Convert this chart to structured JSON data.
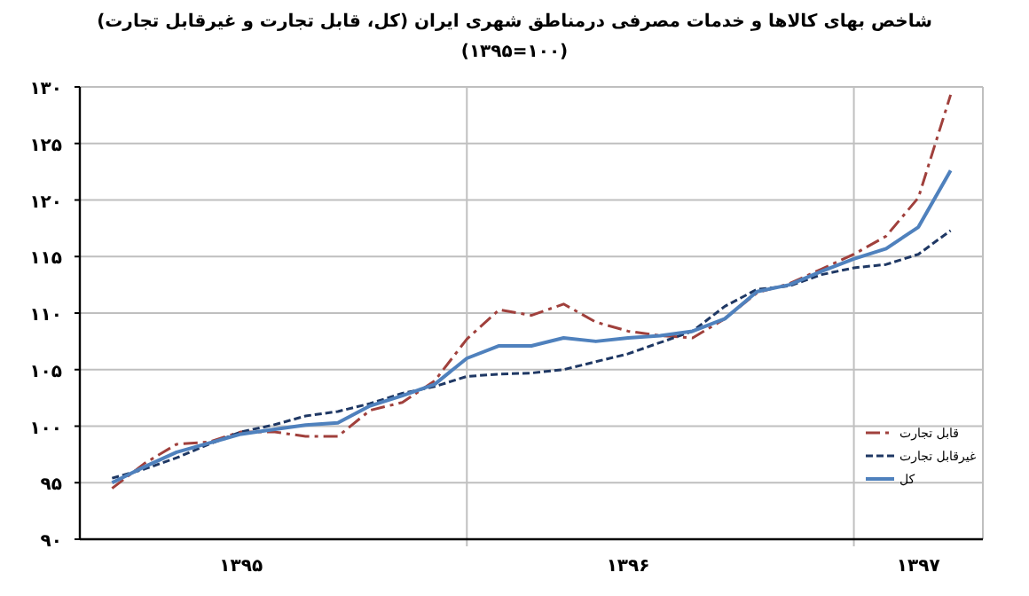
{
  "chart_data": {
    "type": "line",
    "title": "شاخص بهای کالاها و خدمات مصرفی  درمناطق شهری ایران (کل، قابل تجارت و غیرقابل تجارت)",
    "subtitle": "(۱۳۹۵=۱۰۰)",
    "categories": [
      null,
      null,
      null,
      null,
      "۱۳۹۵",
      null,
      null,
      null,
      null,
      null,
      null,
      null,
      null,
      null,
      null,
      null,
      "۱۳۹۶",
      null,
      null,
      null,
      null,
      null,
      null,
      null,
      null,
      "۱۳۹۷",
      null
    ],
    "ylim": [
      90,
      130
    ],
    "yticks": [
      {
        "value": 90,
        "label": "۹۰"
      },
      {
        "value": 95,
        "label": "۹۵"
      },
      {
        "value": 100,
        "label": "۱۰۰"
      },
      {
        "value": 105,
        "label": "۱۰۵"
      },
      {
        "value": 110,
        "label": "۱۱۰"
      },
      {
        "value": 115,
        "label": "۱۱۵"
      },
      {
        "value": 120,
        "label": "۱۲۰"
      },
      {
        "value": 125,
        "label": "۱۲۵"
      },
      {
        "value": 130,
        "label": "۱۳۰"
      }
    ],
    "grid": true,
    "legend": "bottom right",
    "marker": "none",
    "series": [
      {
        "name": "قابل تجارت",
        "color": "#a0403c",
        "line_style": "dashdot",
        "values": [
          94.5,
          96.7,
          98.4,
          98.6,
          99.5,
          99.5,
          99.1,
          99.1,
          101.4,
          102.1,
          104.0,
          107.7,
          110.3,
          109.8,
          110.8,
          109.2,
          108.4,
          108.0,
          107.8,
          109.5,
          111.8,
          112.6,
          113.9,
          115.2,
          116.8,
          120.2,
          129.3
        ]
      },
      {
        "name": "غیرقابل تجارت",
        "color": "#1f3864",
        "line_style": "dashed",
        "values": [
          95.4,
          96.2,
          97.2,
          98.4,
          99.5,
          100.1,
          100.9,
          101.3,
          102.0,
          102.9,
          103.5,
          104.4,
          104.6,
          104.7,
          105.0,
          105.7,
          106.4,
          107.4,
          108.4,
          110.6,
          112.1,
          112.4,
          113.4,
          114.0,
          114.3,
          115.2,
          117.3
        ]
      },
      {
        "name": "کل",
        "color": "#4f81bd",
        "line_style": "solid",
        "values": [
          95.0,
          96.4,
          97.7,
          98.5,
          99.3,
          99.7,
          100.1,
          100.3,
          101.8,
          102.7,
          103.7,
          106.0,
          107.1,
          107.1,
          107.8,
          107.5,
          107.8,
          108.0,
          108.4,
          109.5,
          111.9,
          112.5,
          113.7,
          114.8,
          115.7,
          117.6,
          122.6
        ]
      }
    ]
  }
}
